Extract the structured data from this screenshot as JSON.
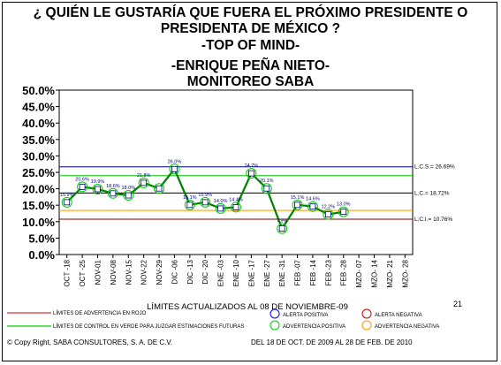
{
  "title_lines": [
    "¿ QUIÉN LE GUSTARÍA QUE FUERA EL PRÓXIMO PRESIDENTE O",
    "PRESIDENTA DE MÉXICO ?",
    "-TOP OF MIND-",
    "-ENRIQUE PEÑA NIETO-",
    "MONITOREO SABA"
  ],
  "page_number": "21",
  "legend": {
    "rojo": "LÍMITES DE ADVERTENCIA EN ROJO",
    "verde": "LÍMITES DE CONTROL EN VERDE PARA JUZGAR ESTIMACIONES FUTURAS",
    "alerta_positiva": "ALERTA POSITIVA",
    "alerta_negativa": "ALERTA NEGATIVA",
    "advertencia_positiva": "ADVERTENCIA POSITIVA",
    "advertencia_negativa": "ADVERTENCIA NEGATIVA"
  },
  "footer": {
    "copyright": "© Copy Right, SABA CONSULTORES, S. A. DE C.V.",
    "period": "DEL 18 DE OCT. DE 2009 AL 28 DE FEB. DE 2010"
  },
  "colors": {
    "series_line": "#008000",
    "series_marker": "#000080",
    "upper_limit": "#000080",
    "center_line": "#000000",
    "lower_limit": "#800000",
    "green_warning": "#00cc00",
    "orange_warning": "#ff9900",
    "alert_pos": "#0000ff",
    "alert_neg": "#cc0000"
  },
  "chart_data": {
    "type": "line",
    "xlabel": "LÍMITES ACTUALIZADOS AL 08 DE NOVIEMBRE-09",
    "ylabel": "",
    "ylim": [
      0,
      50
    ],
    "yticks": [
      "0.0%",
      "5.0%",
      "10.0%",
      "15.0%",
      "20.0%",
      "25.0%",
      "30.0%",
      "35.0%",
      "40.0%",
      "45.0%",
      "50.0%"
    ],
    "categories": [
      "OCT -18",
      "OCT -25",
      "NOV-01",
      "NOV-08",
      "NOV-15",
      "NOV-22",
      "NOV-29",
      "DIC -06",
      "DIC -13",
      "DIC -20",
      "ENE -03",
      "ENE -10",
      "ENE -17",
      "ENE -27",
      "ENE -31",
      "FEB -07",
      "FEB -14",
      "FEB -23",
      "FEB -28",
      "MZO- 07",
      "MZO- 14",
      "MZO- 21",
      "MZO- 28"
    ],
    "series": [
      {
        "values": [
          15.9,
          20.6,
          19.9,
          18.6,
          18.0,
          21.8,
          20.1,
          26.0,
          15.1,
          15.9,
          14.0,
          14.4,
          24.7,
          20.1,
          7.9,
          15.1,
          14.6,
          12.2,
          13.0,
          null,
          null,
          null,
          null
        ],
        "labels": [
          "15.9%",
          "20.6%",
          "19.9%",
          "18.6%",
          "18.0%",
          "21.8%",
          "",
          "26.0%",
          "15.1%",
          "15.9%",
          "14.0%",
          "14.4%",
          "24.7%",
          "20.1%",
          "7.9%",
          "15.1%",
          "14.6%",
          "12.2%",
          "13.0%",
          "",
          "",
          "",
          ""
        ]
      }
    ],
    "reference_lines": [
      {
        "label": "L.C.S.= 26.69%",
        "value": 26.69
      },
      {
        "label": "L.C.= 18.72%",
        "value": 18.72
      },
      {
        "label": "L.C.I.= 10.76%",
        "value": 10.76
      }
    ],
    "warning_lines": [
      {
        "value": 24.0
      },
      {
        "value": 13.4
      }
    ],
    "grid": false
  }
}
